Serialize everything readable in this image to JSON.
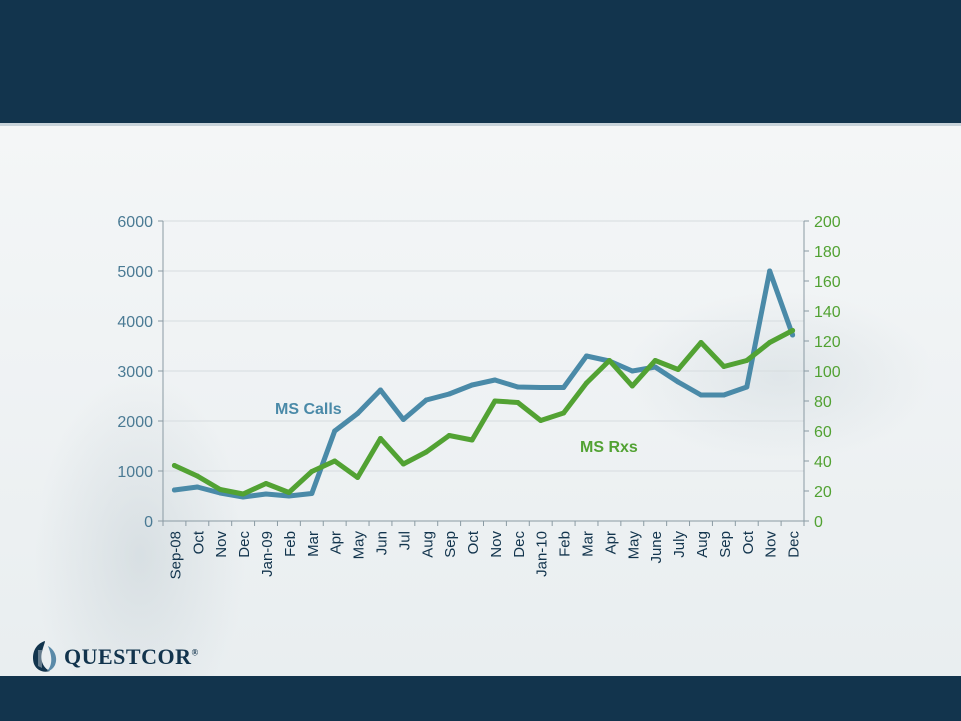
{
  "brand": {
    "name": "QUESTCOR",
    "registered_mark": "®",
    "colors": {
      "navy": "#12344d",
      "blue_line": "#4a8aa8",
      "green_line": "#52a233"
    }
  },
  "chart_data": {
    "type": "line",
    "categories": [
      "Sep-08",
      "Oct",
      "Nov",
      "Dec",
      "Jan-09",
      "Feb",
      "Mar",
      "Apr",
      "May",
      "Jun",
      "Jul",
      "Aug",
      "Sep",
      "Oct",
      "Nov",
      "Dec",
      "Jan-10",
      "Feb",
      "Mar",
      "Apr",
      "May",
      "June",
      "July",
      "Aug",
      "Sep",
      "Oct",
      "Nov",
      "Dec"
    ],
    "y_left": {
      "min": 0,
      "max": 6000,
      "ticks": [
        0,
        1000,
        2000,
        3000,
        4000,
        5000,
        6000
      ],
      "color": "#4a7a94"
    },
    "y_right": {
      "min": 0,
      "max": 200,
      "ticks": [
        0,
        20,
        40,
        60,
        80,
        100,
        120,
        140,
        160,
        180,
        200
      ],
      "color": "#52a233"
    },
    "grid": true,
    "series": [
      {
        "name": "MS Calls",
        "axis": "left",
        "color": "#4a8aa8",
        "values": [
          620,
          680,
          560,
          480,
          540,
          500,
          550,
          1800,
          2150,
          2620,
          2030,
          2420,
          2540,
          2720,
          2820,
          2680,
          2670,
          2670,
          3300,
          3200,
          3000,
          3080,
          2780,
          2520,
          2520,
          2680,
          5000,
          3720
        ]
      },
      {
        "name": "MS Rxs",
        "axis": "right",
        "color": "#52a233",
        "values": [
          37,
          30,
          21,
          18,
          25,
          19,
          33,
          40,
          29,
          55,
          38,
          46,
          57,
          54,
          80,
          79,
          67,
          72,
          92,
          107,
          90,
          107,
          101,
          119,
          103,
          107,
          119,
          127
        ]
      }
    ]
  }
}
